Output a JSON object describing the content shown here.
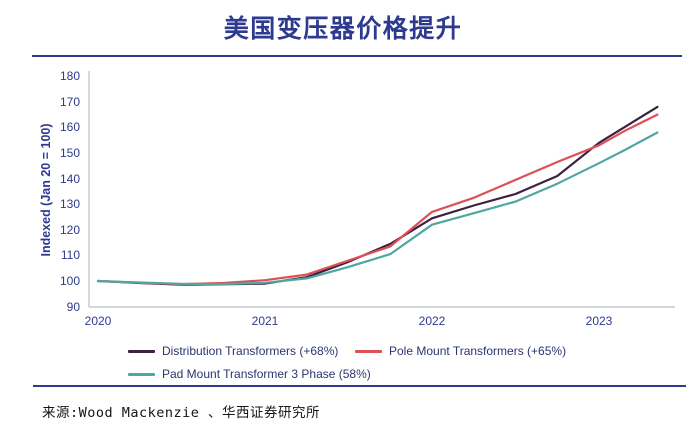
{
  "page": {
    "title": "美国变压器价格提升",
    "source": "来源:Wood Mackenzie 、华西证券研究所",
    "accent_color": "#2e3a90"
  },
  "chart_data": {
    "type": "line",
    "title": "美国变压器价格提升",
    "xlabel": "",
    "ylabel": "Indexed (Jan 20 = 100)",
    "ylim": [
      90,
      180
    ],
    "xlim": [
      2020.0,
      2023.45
    ],
    "grid": false,
    "legend_position": "bottom",
    "y_ticks": [
      180,
      170,
      160,
      150,
      140,
      130,
      120,
      110,
      100,
      90
    ],
    "x_ticks": [
      2020,
      2021,
      2022,
      2023
    ],
    "x": [
      2020.0,
      2020.25,
      2020.5,
      2020.75,
      2021.0,
      2021.25,
      2021.5,
      2021.75,
      2022.0,
      2022.25,
      2022.5,
      2022.75,
      2023.0,
      2023.15,
      2023.35
    ],
    "series": [
      {
        "name": "Distribution Transformers (+68%)",
        "color": "#3c2142",
        "values": [
          100,
          99.2,
          98.6,
          98.7,
          99.0,
          101.5,
          107.5,
          114.5,
          124.5,
          129.5,
          134,
          141,
          154,
          160,
          168
        ]
      },
      {
        "name": "Pole Mount Transformers (+65%)",
        "color": "#dd5055",
        "values": [
          100,
          99.3,
          98.8,
          99.2,
          100.3,
          102.5,
          108,
          113.5,
          127,
          132.5,
          139.5,
          146.5,
          153,
          158.5,
          165
        ]
      },
      {
        "name": "Pad Mount Transformer 3 Phase (58%)",
        "color": "#4fa7a1",
        "values": [
          100,
          99.4,
          98.9,
          98.8,
          99.3,
          101,
          105.5,
          110.5,
          122,
          126.5,
          131,
          138,
          146,
          151,
          158
        ]
      }
    ]
  }
}
